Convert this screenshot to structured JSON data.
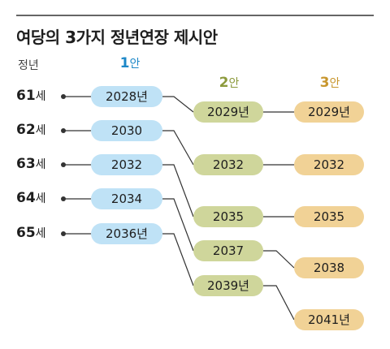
{
  "title": "여당의 3가지 정년연장 제시안",
  "age_header": "정년",
  "columns": [
    {
      "num": "1",
      "suffix": "안"
    },
    {
      "num": "2",
      "suffix": "안"
    },
    {
      "num": "3",
      "suffix": "안"
    }
  ],
  "ages": [
    {
      "num": "61",
      "unit": "세"
    },
    {
      "num": "62",
      "unit": "세"
    },
    {
      "num": "63",
      "unit": "세"
    },
    {
      "num": "64",
      "unit": "세"
    },
    {
      "num": "65",
      "unit": "세"
    }
  ],
  "plan1": [
    "2028년",
    "2030",
    "2032",
    "2034",
    "2036년"
  ],
  "plan2": [
    "2029년",
    "2032",
    "2035",
    "2037",
    "2039년"
  ],
  "plan3": [
    "2029년",
    "2032",
    "2035",
    "2038",
    "2041년"
  ],
  "colors": {
    "plan1": "#bfe2f6",
    "plan2": "#cfd69b",
    "plan3": "#f1d296",
    "plan1_header": "#1e88c8",
    "plan2_header": "#8c9a3c",
    "plan3_header": "#c8962d"
  }
}
